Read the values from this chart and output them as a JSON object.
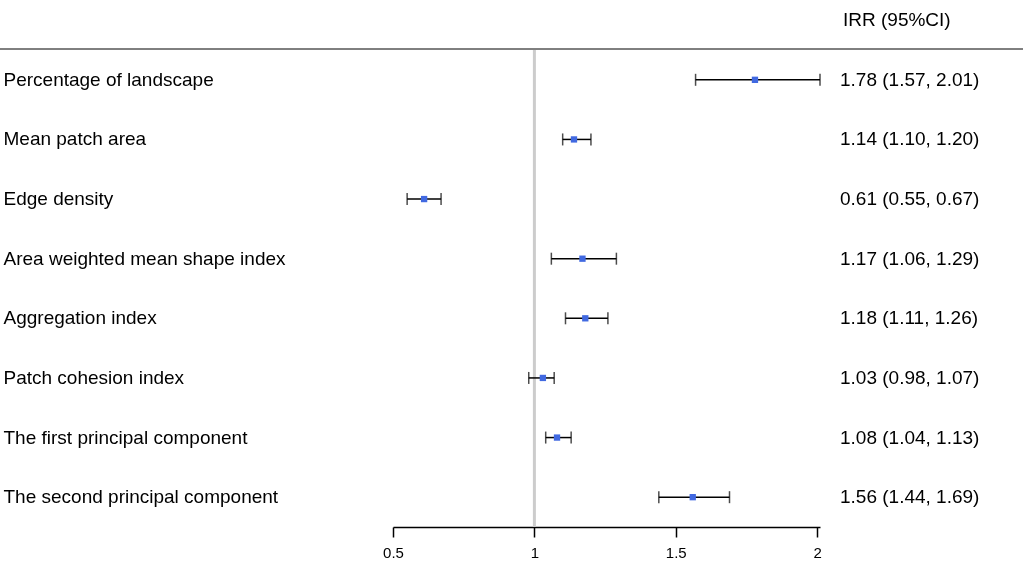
{
  "chart_data": {
    "type": "scatter",
    "annotations": [
      "IRR (95%CI)"
    ],
    "categories": [
      "Percentage of landscape",
      "Mean patch area",
      "Edge density",
      "Area weighted mean shape index",
      "Aggregation index",
      "Patch cohesion index",
      "The first principal component",
      "The second principal component"
    ],
    "values": [
      1.78,
      1.14,
      0.61,
      1.17,
      1.18,
      1.03,
      1.08,
      1.56
    ],
    "errors": [
      [
        1.57,
        2.01
      ],
      [
        1.1,
        1.2
      ],
      [
        0.55,
        0.67
      ],
      [
        1.06,
        1.29
      ],
      [
        1.11,
        1.26
      ],
      [
        0.98,
        1.07
      ],
      [
        1.04,
        1.13
      ],
      [
        1.44,
        1.69
      ]
    ],
    "value_labels": [
      "1.78 (1.57, 2.01)",
      "1.14 (1.10, 1.20)",
      "0.61 (0.55, 0.67)",
      "1.17 (1.06, 1.29)",
      "1.18 (1.11, 1.26)",
      "1.03 (0.98, 1.07)",
      "1.08 (1.04, 1.13)",
      "1.56 (1.44, 1.69)"
    ],
    "color": "#4169e1",
    "marker": "square",
    "xlim": [
      0.5,
      2.01
    ],
    "xticks": [
      0.5,
      1,
      1.5,
      2
    ],
    "ref_lines": [
      {
        "axis": "x",
        "value": 1,
        "color": "#cccccc"
      }
    ],
    "grid": false,
    "orientation": "horizontal"
  }
}
